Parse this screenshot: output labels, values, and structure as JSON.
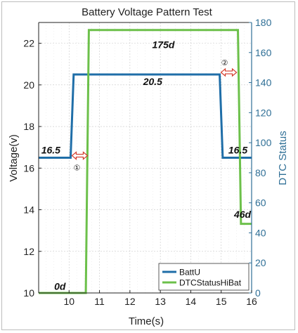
{
  "chart_data": {
    "type": "line",
    "title": "Battery Voltage Pattern Test",
    "xlabel": "Time(s)",
    "ylabel": "Voltage(v)",
    "y2label": "DTC Status",
    "xlim": [
      9,
      16
    ],
    "ylim": [
      10,
      23
    ],
    "y2lim": [
      0,
      180
    ],
    "xticks": [
      10,
      11,
      12,
      13,
      14,
      15,
      16
    ],
    "yticks": [
      10,
      12,
      14,
      16,
      18,
      20,
      22
    ],
    "y2ticks": [
      0,
      20,
      40,
      60,
      80,
      100,
      120,
      140,
      160,
      180
    ],
    "grid": true,
    "legend": {
      "position": "bottom-right",
      "entries": [
        "BattU",
        "DTCStatusHiBat"
      ]
    },
    "series": [
      {
        "name": "BattU",
        "axis": "left",
        "color": "#1f6ea8",
        "x": [
          9,
          10.05,
          10.15,
          14.95,
          15.05,
          16
        ],
        "y": [
          16.5,
          16.5,
          20.5,
          20.5,
          16.5,
          16.5
        ]
      },
      {
        "name": "DTCStatusHiBat",
        "axis": "right",
        "color": "#6cc04a",
        "x": [
          9,
          10.55,
          10.65,
          15.55,
          15.65,
          16
        ],
        "y": [
          0,
          0,
          175,
          175,
          46,
          46
        ]
      }
    ],
    "annotations": [
      {
        "text": "175d",
        "x": 13.1,
        "y2": 163
      },
      {
        "text": "20.5",
        "x": 12.75,
        "y": 20.0
      },
      {
        "text": "16.5",
        "x": 9.4,
        "y": 16.7
      },
      {
        "text": "16.5",
        "x": 15.55,
        "y": 16.7
      },
      {
        "text": "46d",
        "x": 15.7,
        "y2": 50
      },
      {
        "text": "0d",
        "x": 9.7,
        "y2": 2
      }
    ],
    "markers": [
      {
        "label": "①",
        "x": 10.35,
        "y": 16.6
      },
      {
        "label": "②",
        "x": 15.25,
        "y": 20.6
      }
    ]
  }
}
